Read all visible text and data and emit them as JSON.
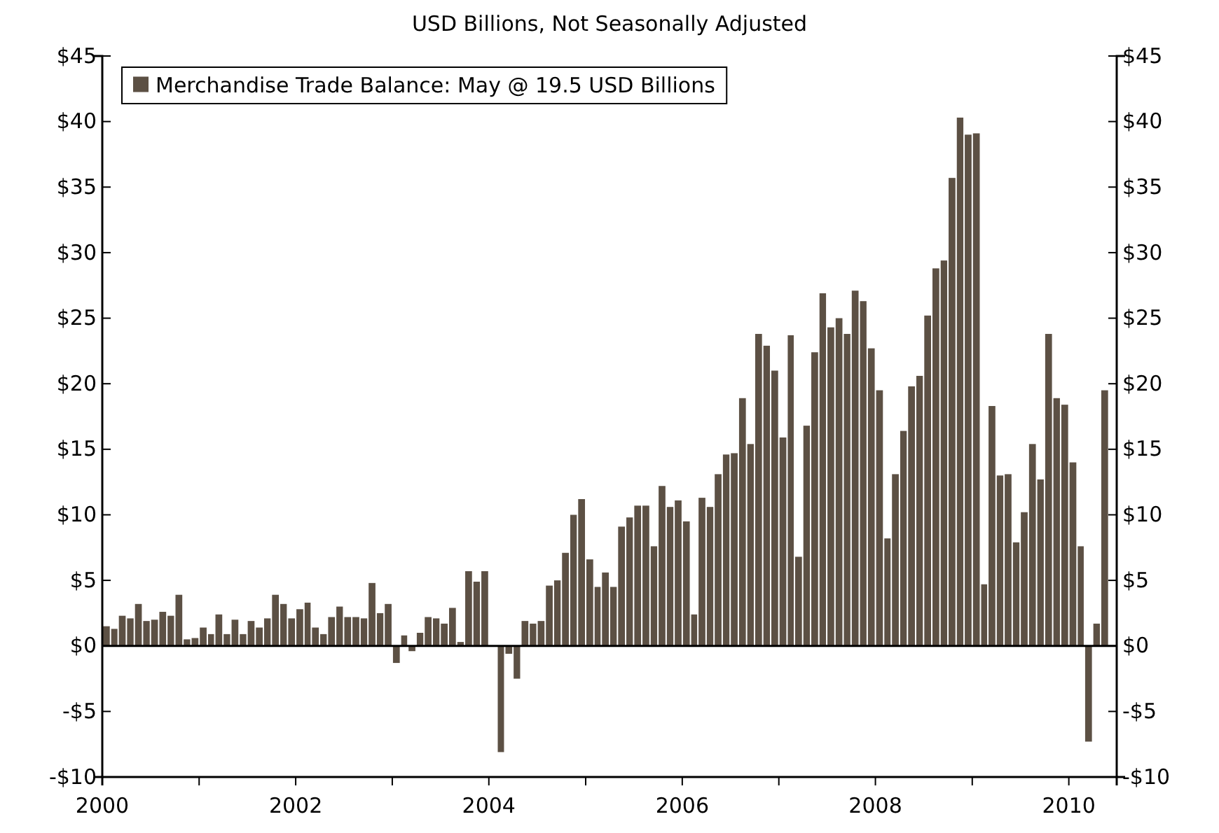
{
  "chart_data": {
    "type": "bar",
    "title": "USD Billions, Not Seasonally Adjusted",
    "x": [
      "2000-01",
      "2000-02",
      "2000-03",
      "2000-04",
      "2000-05",
      "2000-06",
      "2000-07",
      "2000-08",
      "2000-09",
      "2000-10",
      "2000-11",
      "2000-12",
      "2001-01",
      "2001-02",
      "2001-03",
      "2001-04",
      "2001-05",
      "2001-06",
      "2001-07",
      "2001-08",
      "2001-09",
      "2001-10",
      "2001-11",
      "2001-12",
      "2002-01",
      "2002-02",
      "2002-03",
      "2002-04",
      "2002-05",
      "2002-06",
      "2002-07",
      "2002-08",
      "2002-09",
      "2002-10",
      "2002-11",
      "2002-12",
      "2003-01",
      "2003-02",
      "2003-03",
      "2003-04",
      "2003-05",
      "2003-06",
      "2003-07",
      "2003-08",
      "2003-09",
      "2003-10",
      "2003-11",
      "2003-12",
      "2004-01",
      "2004-02",
      "2004-03",
      "2004-04",
      "2004-05",
      "2004-06",
      "2004-07",
      "2004-08",
      "2004-09",
      "2004-10",
      "2004-11",
      "2004-12",
      "2005-01",
      "2005-02",
      "2005-03",
      "2005-04",
      "2005-05",
      "2005-06",
      "2005-07",
      "2005-08",
      "2005-09",
      "2005-10",
      "2005-11",
      "2005-12",
      "2006-01",
      "2006-02",
      "2006-03",
      "2006-04",
      "2006-05",
      "2006-06",
      "2006-07",
      "2006-08",
      "2006-09",
      "2006-10",
      "2006-11",
      "2006-12",
      "2007-01",
      "2007-02",
      "2007-03",
      "2007-04",
      "2007-05",
      "2007-06",
      "2007-07",
      "2007-08",
      "2007-09",
      "2007-10",
      "2007-11",
      "2007-12",
      "2008-01",
      "2008-02",
      "2008-03",
      "2008-04",
      "2008-05",
      "2008-06",
      "2008-07",
      "2008-08",
      "2008-09",
      "2008-10",
      "2008-11",
      "2008-12",
      "2009-01",
      "2009-02",
      "2009-03",
      "2009-04",
      "2009-05",
      "2009-06",
      "2009-07",
      "2009-08",
      "2009-09",
      "2009-10",
      "2009-11",
      "2009-12",
      "2010-01",
      "2010-02",
      "2010-03",
      "2010-04",
      "2010-05"
    ],
    "series": [
      {
        "name": "Merchandise Trade Balance: May @ 19.5 USD Billions",
        "color": "#5c5044",
        "values": [
          1.5,
          1.3,
          2.3,
          2.1,
          3.2,
          1.9,
          2.0,
          2.6,
          2.3,
          3.9,
          0.5,
          0.6,
          1.4,
          0.9,
          2.4,
          0.9,
          2.0,
          0.9,
          1.9,
          1.4,
          2.1,
          3.9,
          3.2,
          2.1,
          2.8,
          3.3,
          1.4,
          0.9,
          2.2,
          3.0,
          2.2,
          2.2,
          2.1,
          4.8,
          2.5,
          3.2,
          -1.3,
          0.8,
          -0.4,
          1.0,
          2.2,
          2.1,
          1.7,
          2.9,
          0.3,
          5.7,
          4.9,
          5.7,
          0,
          -8.1,
          -0.6,
          -2.5,
          1.9,
          1.7,
          1.9,
          4.6,
          5.0,
          7.1,
          10.0,
          11.2,
          6.6,
          4.5,
          5.6,
          4.5,
          9.1,
          9.8,
          10.7,
          10.7,
          7.6,
          12.2,
          10.6,
          11.1,
          9.5,
          2.4,
          11.3,
          10.6,
          13.1,
          14.6,
          14.7,
          18.9,
          15.4,
          23.8,
          22.9,
          21.0,
          15.9,
          23.7,
          6.8,
          16.8,
          22.4,
          26.9,
          24.3,
          25.0,
          23.8,
          27.1,
          26.3,
          22.7,
          19.5,
          8.2,
          13.1,
          16.4,
          19.8,
          20.6,
          25.2,
          28.8,
          29.4,
          35.7,
          40.3,
          39.0,
          39.1,
          4.7,
          18.3,
          13.0,
          13.1,
          7.9,
          10.2,
          15.4,
          12.7,
          23.8,
          18.9,
          18.4,
          14.0,
          7.6,
          -7.3,
          1.7,
          19.5
        ]
      }
    ],
    "xlim": [
      "2000-01",
      "2010-07"
    ],
    "xticks": [
      {
        "value": "2000-01",
        "label": "2000"
      },
      {
        "value": "2001-01",
        "label": null
      },
      {
        "value": "2002-01",
        "label": "2002"
      },
      {
        "value": "2003-01",
        "label": null
      },
      {
        "value": "2004-01",
        "label": "2004"
      },
      {
        "value": "2005-01",
        "label": null
      },
      {
        "value": "2006-01",
        "label": "2006"
      },
      {
        "value": "2007-01",
        "label": null
      },
      {
        "value": "2008-01",
        "label": "2008"
      },
      {
        "value": "2009-01",
        "label": null
      },
      {
        "value": "2010-01",
        "label": "2010"
      }
    ],
    "ylim": [
      -10,
      45
    ],
    "yticks": [
      {
        "value": -10,
        "label": "-$10"
      },
      {
        "value": -5,
        "label": "-$5"
      },
      {
        "value": 0,
        "label": "$0"
      },
      {
        "value": 5,
        "label": "$5"
      },
      {
        "value": 10,
        "label": "$10"
      },
      {
        "value": 15,
        "label": "$15"
      },
      {
        "value": 20,
        "label": "$20"
      },
      {
        "value": 25,
        "label": "$25"
      },
      {
        "value": 30,
        "label": "$30"
      },
      {
        "value": 35,
        "label": "$35"
      },
      {
        "value": 40,
        "label": "$40"
      },
      {
        "value": 45,
        "label": "$45"
      }
    ],
    "y2lim": [
      -10,
      45
    ],
    "y2ticks": [
      {
        "value": -10,
        "label": "-$10"
      },
      {
        "value": -5,
        "label": "-$5"
      },
      {
        "value": 0,
        "label": "$0"
      },
      {
        "value": 5,
        "label": "$5"
      },
      {
        "value": 10,
        "label": "$10"
      },
      {
        "value": 15,
        "label": "$15"
      },
      {
        "value": 20,
        "label": "$20"
      },
      {
        "value": 25,
        "label": "$25"
      },
      {
        "value": 30,
        "label": "$30"
      },
      {
        "value": 35,
        "label": "$35"
      },
      {
        "value": 40,
        "label": "$40"
      },
      {
        "value": 45,
        "label": "$45"
      }
    ],
    "ref_lines": [
      {
        "axis": "y",
        "value": 0,
        "color": "#000000"
      }
    ],
    "legend": "top left"
  }
}
